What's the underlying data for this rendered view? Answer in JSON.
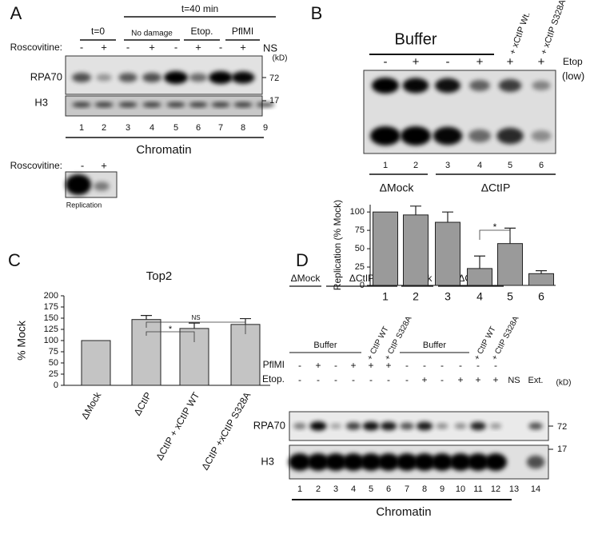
{
  "panel_a": {
    "letter": "A",
    "time_all": "t=40 min",
    "groups": [
      "t=0",
      "No damage",
      "Etop.",
      "PflMI"
    ],
    "treatment_label": "Roscovitine:",
    "treatment": [
      "-",
      "+",
      "-",
      "+",
      "-",
      "+",
      "-",
      "+"
    ],
    "ns": "NS",
    "kd": "(kD)",
    "bands": [
      "RPA70",
      "H3"
    ],
    "markers": [
      "72",
      "17"
    ],
    "lanes": [
      "1",
      "2",
      "3",
      "4",
      "5",
      "6",
      "7",
      "8",
      "9"
    ],
    "fraction": "Chromatin",
    "inset": {
      "treatment_label": "Roscovitine:",
      "treatment": [
        "-",
        "+"
      ],
      "caption": "Replication"
    }
  },
  "panel_b": {
    "letter": "B",
    "buffer": "Buffer",
    "additions": [
      "+ xCtIP Wt.",
      "+ xCtIP S328A"
    ],
    "etop": [
      "-",
      "+",
      "-",
      "+",
      "+",
      "+"
    ],
    "etop_label": "Etop",
    "etop_dose": "(low)",
    "lanes": [
      "1",
      "2",
      "3",
      "4",
      "5",
      "6"
    ],
    "groups": [
      "ΔMock",
      "ΔCtIP"
    ]
  },
  "panel_c": {
    "letter": "C"
  },
  "panel_d": {
    "letter": "D",
    "groups": [
      "ΔMock",
      "ΔCtIP",
      "ΔMock",
      "ΔCtIP"
    ],
    "buffer": [
      "Buffer",
      "Buffer"
    ],
    "additions": [
      "+ CtIP WT",
      "+ CtIP S328A",
      "+ CtIP WT",
      "+ CtIP S328A"
    ],
    "treatments": [
      "PflMI",
      "Etop."
    ],
    "pflmi": [
      "-",
      "+",
      "-",
      "+",
      "+",
      "+",
      "-",
      "-",
      "-",
      "-",
      "-",
      "-"
    ],
    "etop": [
      "-",
      "-",
      "-",
      "-",
      "-",
      "-",
      "-",
      "+",
      "-",
      "+",
      "+",
      "+"
    ],
    "ns": "NS",
    "ext": "Ext.",
    "kd": "(kD)",
    "bands": [
      "RPA70",
      "H3"
    ],
    "markers": [
      "72",
      "17"
    ],
    "lanes": [
      "1",
      "2",
      "3",
      "4",
      "5",
      "6",
      "7",
      "8",
      "9",
      "10",
      "11",
      "12",
      "13",
      "14"
    ],
    "fraction": "Chromatin"
  },
  "chart_data": [
    {
      "type": "bar",
      "ylabel": "Replication (% Mock)",
      "categories": [
        "1",
        "2",
        "3",
        "4",
        "5",
        "6"
      ],
      "values": [
        100,
        96,
        86,
        23,
        57,
        16
      ],
      "errors": [
        null,
        12,
        14,
        17,
        21,
        4
      ],
      "color": "#9a9a9a",
      "ylim": [
        0,
        110
      ],
      "yticks": [
        0,
        25,
        50,
        75,
        100
      ],
      "annotations": [
        "*"
      ]
    },
    {
      "type": "bar",
      "title": "Top2",
      "ylabel": "% Mock",
      "categories": [
        "ΔMock",
        "ΔCtIP",
        "ΔCtIP + xCtIP WT",
        "ΔCtIP +xCtIP S328A"
      ],
      "values": [
        100,
        147,
        127,
        136
      ],
      "errors": [
        null,
        9,
        12,
        13
      ],
      "color": "#c4c4c4",
      "ylim": [
        0,
        200
      ],
      "yticks": [
        0,
        25,
        50,
        75,
        100,
        125,
        150,
        175,
        200
      ],
      "annotations": [
        "*",
        "NS"
      ]
    }
  ]
}
